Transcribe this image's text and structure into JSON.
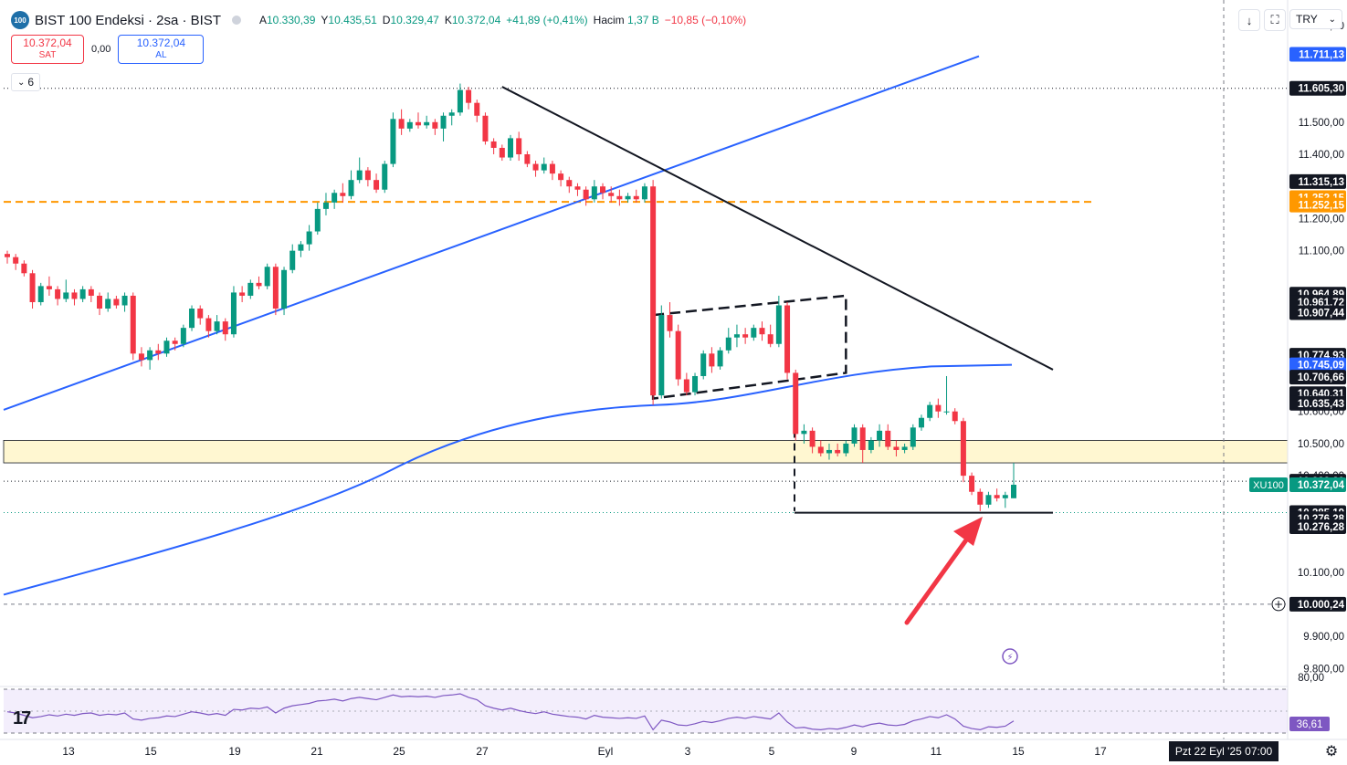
{
  "header": {
    "logo_text": "100",
    "title": "BIST 100 Endeksi · 2sa · BIST",
    "open_label": "A",
    "open": "10.330,39",
    "high_label": "Y",
    "high": "10.435,51",
    "low_label": "D",
    "low": "10.329,47",
    "close_label": "K",
    "close": "10.372,04",
    "change": "+41,89 (+0,41%)",
    "volume_label": "Hacim",
    "volume": "1,37 B",
    "volume_change": "−10,85 (−0,10%)"
  },
  "trade": {
    "sell_price": "10.372,04",
    "sell_label": "SAT",
    "spread": "0,00",
    "buy_price": "10.372,04",
    "buy_label": "AL"
  },
  "indicator_toggle": {
    "count": "6"
  },
  "toolbar": {
    "currency": "TRY"
  },
  "footer": {
    "date": "Pzt 22 Eyl '25   07:00"
  },
  "colors": {
    "up": "#089981",
    "down": "#f23645",
    "trend": "#2962ff",
    "resistance": "#131722",
    "dashed_level": "#ff9800",
    "zone_fill": "#fff7d1",
    "rsi": "#7e57c2",
    "arrow": "#f23645"
  },
  "chart_data": {
    "type": "candlestick",
    "symbol": "XU100",
    "interval": "2h",
    "ylim": [
      9750,
      11880
    ],
    "y_ticks": [
      {
        "v": 11800,
        "t": "11.800,00"
      },
      {
        "v": 11500,
        "t": "11.500,00"
      },
      {
        "v": 11400,
        "t": "11.400,00"
      },
      {
        "v": 11200,
        "t": "11.200,00"
      },
      {
        "v": 11100,
        "t": "11.100,00"
      },
      {
        "v": 10600,
        "t": "10.600,00"
      },
      {
        "v": 10500,
        "t": "10.500,00"
      },
      {
        "v": 10400,
        "t": "10.400,00"
      },
      {
        "v": 10100,
        "t": "10.100,00"
      },
      {
        "v": 9900,
        "t": "9.900,00"
      },
      {
        "v": 9800,
        "t": "9.800,00"
      }
    ],
    "x_ticks": [
      "13",
      "15",
      "19",
      "21",
      "25",
      "27",
      "Eyl",
      "3",
      "5",
      "9",
      "11",
      "15",
      "17"
    ],
    "price_labels": [
      {
        "v": 11711.13,
        "t": "11.711,13",
        "bg": "#2962ff"
      },
      {
        "v": 11605.3,
        "t": "11.605,30",
        "bg": "#131722"
      },
      {
        "v": 11315.13,
        "t": "11.315,13",
        "bg": "#131722"
      },
      {
        "v": 11265.15,
        "t": "11.252,15",
        "bg": "#ff9800"
      },
      {
        "v": 11242.15,
        "t": "11.252,15",
        "bg": "#ff9800"
      },
      {
        "v": 10964.89,
        "t": "10.964,89",
        "bg": "#131722"
      },
      {
        "v": 10939.72,
        "t": "10.961,72",
        "bg": "#131722"
      },
      {
        "v": 10907.44,
        "t": "10.907,44",
        "bg": "#131722"
      },
      {
        "v": 10774.93,
        "t": "10.774,93",
        "bg": "#131722"
      },
      {
        "v": 10745.09,
        "t": "10.745,09",
        "bg": "#2962ff"
      },
      {
        "v": 10706.66,
        "t": "10.706,66",
        "bg": "#131722"
      },
      {
        "v": 10655.31,
        "t": "10.640,31",
        "bg": "#131722"
      },
      {
        "v": 10625.43,
        "t": "10.635,43",
        "bg": "#131722"
      },
      {
        "v": 10382.89,
        "t": "10.382,89",
        "bg": "#131722"
      },
      {
        "v": 10372.04,
        "t": "10.372,04",
        "bg": "#089981"
      },
      {
        "v": 10285.19,
        "t": "10.285,19",
        "bg": "#131722"
      },
      {
        "v": 10266.28,
        "t": "10.276,28",
        "bg": "#131722"
      },
      {
        "v": 10241.28,
        "t": "10.276,28",
        "bg": "#131722"
      },
      {
        "v": 10000.24,
        "t": "10.000,24",
        "bg": "#131722"
      }
    ],
    "symbol_tag": "XU100",
    "rsi": {
      "levels": [
        {
          "v": 80,
          "t": "80,00"
        }
      ],
      "last": "36,61"
    },
    "ohlc": [
      [
        11090,
        11100,
        11060,
        11080
      ],
      [
        11080,
        11090,
        11040,
        11060
      ],
      [
        11060,
        11070,
        11020,
        11030
      ],
      [
        11030,
        11040,
        10920,
        10940
      ],
      [
        10940,
        11000,
        10930,
        10990
      ],
      [
        10990,
        11020,
        10960,
        10980
      ],
      [
        10980,
        10990,
        10930,
        10950
      ],
      [
        10950,
        11010,
        10940,
        10970
      ],
      [
        10970,
        10980,
        10930,
        10950
      ],
      [
        10950,
        10990,
        10940,
        10980
      ],
      [
        10980,
        10990,
        10940,
        10960
      ],
      [
        10960,
        10970,
        10900,
        10920
      ],
      [
        10920,
        10970,
        10910,
        10950
      ],
      [
        10950,
        10960,
        10920,
        10930
      ],
      [
        10930,
        10970,
        10910,
        10960
      ],
      [
        10960,
        10970,
        10760,
        10780
      ],
      [
        10780,
        10800,
        10740,
        10760
      ],
      [
        10760,
        10800,
        10730,
        10790
      ],
      [
        10790,
        10810,
        10760,
        10780
      ],
      [
        10780,
        10830,
        10770,
        10820
      ],
      [
        10820,
        10830,
        10790,
        10810
      ],
      [
        10810,
        10870,
        10800,
        10860
      ],
      [
        10860,
        10930,
        10850,
        10920
      ],
      [
        10920,
        10930,
        10870,
        10890
      ],
      [
        10890,
        10900,
        10830,
        10850
      ],
      [
        10850,
        10900,
        10840,
        10880
      ],
      [
        10880,
        10890,
        10820,
        10840
      ],
      [
        10840,
        10990,
        10830,
        10970
      ],
      [
        10970,
        10990,
        10940,
        10960
      ],
      [
        10960,
        11010,
        10950,
        11000
      ],
      [
        11000,
        11020,
        10980,
        10990
      ],
      [
        10990,
        11060,
        10980,
        11050
      ],
      [
        11050,
        11060,
        10900,
        10920
      ],
      [
        10920,
        11050,
        10900,
        11040
      ],
      [
        11040,
        11120,
        11030,
        11100
      ],
      [
        11100,
        11130,
        11080,
        11120
      ],
      [
        11120,
        11180,
        11100,
        11160
      ],
      [
        11160,
        11250,
        11150,
        11230
      ],
      [
        11230,
        11280,
        11210,
        11250
      ],
      [
        11250,
        11290,
        11230,
        11280
      ],
      [
        11280,
        11310,
        11250,
        11270
      ],
      [
        11270,
        11350,
        11260,
        11320
      ],
      [
        11320,
        11390,
        11310,
        11350
      ],
      [
        11350,
        11360,
        11300,
        11320
      ],
      [
        11320,
        11340,
        11280,
        11290
      ],
      [
        11290,
        11380,
        11280,
        11370
      ],
      [
        11370,
        11530,
        11360,
        11510
      ],
      [
        11510,
        11540,
        11460,
        11480
      ],
      [
        11480,
        11510,
        11470,
        11500
      ],
      [
        11500,
        11530,
        11480,
        11490
      ],
      [
        11490,
        11520,
        11480,
        11500
      ],
      [
        11500,
        11510,
        11460,
        11480
      ],
      [
        11480,
        11530,
        11440,
        11520
      ],
      [
        11520,
        11540,
        11490,
        11530
      ],
      [
        11530,
        11620,
        11520,
        11600
      ],
      [
        11600,
        11610,
        11540,
        11560
      ],
      [
        11560,
        11570,
        11500,
        11520
      ],
      [
        11520,
        11530,
        11430,
        11440
      ],
      [
        11440,
        11450,
        11400,
        11420
      ],
      [
        11420,
        11430,
        11380,
        11390
      ],
      [
        11390,
        11460,
        11380,
        11450
      ],
      [
        11450,
        11470,
        11380,
        11400
      ],
      [
        11400,
        11410,
        11360,
        11370
      ],
      [
        11370,
        11380,
        11330,
        11350
      ],
      [
        11350,
        11390,
        11340,
        11370
      ],
      [
        11370,
        11380,
        11320,
        11340
      ],
      [
        11340,
        11350,
        11300,
        11320
      ],
      [
        11320,
        11330,
        11280,
        11300
      ],
      [
        11300,
        11310,
        11270,
        11290
      ],
      [
        11290,
        11300,
        11240,
        11260
      ],
      [
        11260,
        11320,
        11250,
        11300
      ],
      [
        11300,
        11310,
        11260,
        11280
      ],
      [
        11280,
        11300,
        11250,
        11270
      ],
      [
        11270,
        11290,
        11240,
        11260
      ],
      [
        11260,
        11280,
        11250,
        11270
      ],
      [
        11270,
        11290,
        11250,
        11260
      ],
      [
        11260,
        11310,
        11250,
        11300
      ],
      [
        11300,
        11320,
        10620,
        10650
      ],
      [
        10650,
        10930,
        10640,
        10900
      ],
      [
        10900,
        10940,
        10830,
        10850
      ],
      [
        10850,
        10870,
        10680,
        10700
      ],
      [
        10700,
        10720,
        10650,
        10660
      ],
      [
        10660,
        10720,
        10650,
        10710
      ],
      [
        10710,
        10790,
        10700,
        10780
      ],
      [
        10780,
        10800,
        10720,
        10740
      ],
      [
        10740,
        10800,
        10730,
        10790
      ],
      [
        10790,
        10860,
        10780,
        10830
      ],
      [
        10830,
        10870,
        10800,
        10840
      ],
      [
        10840,
        10860,
        10810,
        10830
      ],
      [
        10830,
        10870,
        10820,
        10860
      ],
      [
        10860,
        10880,
        10820,
        10840
      ],
      [
        10840,
        10870,
        10800,
        10810
      ],
      [
        10810,
        10960,
        10800,
        10930
      ],
      [
        10930,
        10940,
        10700,
        10720
      ],
      [
        10720,
        10730,
        10510,
        10530
      ],
      [
        10530,
        10560,
        10500,
        10540
      ],
      [
        10540,
        10550,
        10470,
        10490
      ],
      [
        10490,
        10510,
        10460,
        10470
      ],
      [
        10470,
        10500,
        10450,
        10480
      ],
      [
        10480,
        10500,
        10460,
        10470
      ],
      [
        10470,
        10510,
        10460,
        10500
      ],
      [
        10500,
        10560,
        10490,
        10550
      ],
      [
        10550,
        10560,
        10440,
        10480
      ],
      [
        10480,
        10520,
        10470,
        10510
      ],
      [
        10510,
        10560,
        10490,
        10540
      ],
      [
        10540,
        10560,
        10480,
        10490
      ],
      [
        10490,
        10510,
        10460,
        10480
      ],
      [
        10480,
        10500,
        10470,
        10490
      ],
      [
        10490,
        10560,
        10480,
        10550
      ],
      [
        10550,
        10590,
        10540,
        10580
      ],
      [
        10580,
        10630,
        10570,
        10620
      ],
      [
        10620,
        10640,
        10580,
        10600
      ],
      [
        10600,
        10710,
        10590,
        10600
      ],
      [
        10600,
        10610,
        10560,
        10570
      ],
      [
        10570,
        10580,
        10380,
        10400
      ],
      [
        10400,
        10410,
        10340,
        10350
      ],
      [
        10350,
        10360,
        10290,
        10310
      ],
      [
        10310,
        10350,
        10300,
        10340
      ],
      [
        10340,
        10360,
        10320,
        10330
      ],
      [
        10330,
        10350,
        10300,
        10340
      ],
      [
        10330,
        10440,
        10330,
        10372
      ]
    ],
    "rsi_values": [
      52,
      50,
      46,
      42,
      44,
      47,
      45,
      48,
      46,
      49,
      50,
      46,
      48,
      47,
      50,
      40,
      38,
      41,
      42,
      45,
      44,
      48,
      52,
      50,
      47,
      49,
      46,
      56,
      55,
      58,
      57,
      60,
      50,
      58,
      62,
      64,
      66,
      70,
      71,
      73,
      70,
      74,
      76,
      74,
      72,
      76,
      80,
      77,
      78,
      77,
      78,
      76,
      79,
      80,
      82,
      76,
      72,
      62,
      58,
      55,
      58,
      54,
      51,
      49,
      52,
      48,
      46,
      44,
      43,
      40,
      46,
      43,
      42,
      41,
      42,
      41,
      45,
      22,
      38,
      35,
      30,
      29,
      32,
      36,
      34,
      37,
      41,
      43,
      41,
      44,
      42,
      40,
      50,
      35,
      25,
      26,
      23,
      22,
      24,
      23,
      26,
      30,
      27,
      31,
      33,
      30,
      29,
      31,
      37,
      40,
      44,
      42,
      47,
      40,
      28,
      24,
      22,
      27,
      26,
      28,
      36.61
    ],
    "lines": [
      {
        "name": "upper-trend",
        "color": "#2962ff",
        "from": [
          0,
          10605
        ],
        "to": [
          126,
          11705
        ]
      },
      {
        "name": "resistance",
        "color": "#131722",
        "from": [
          59,
          11610
        ],
        "to": [
          134,
          10730
        ]
      },
      {
        "name": "support",
        "color": "#131722",
        "from": [
          101,
          10285
        ],
        "to": [
          134,
          10285
        ]
      }
    ]
  }
}
